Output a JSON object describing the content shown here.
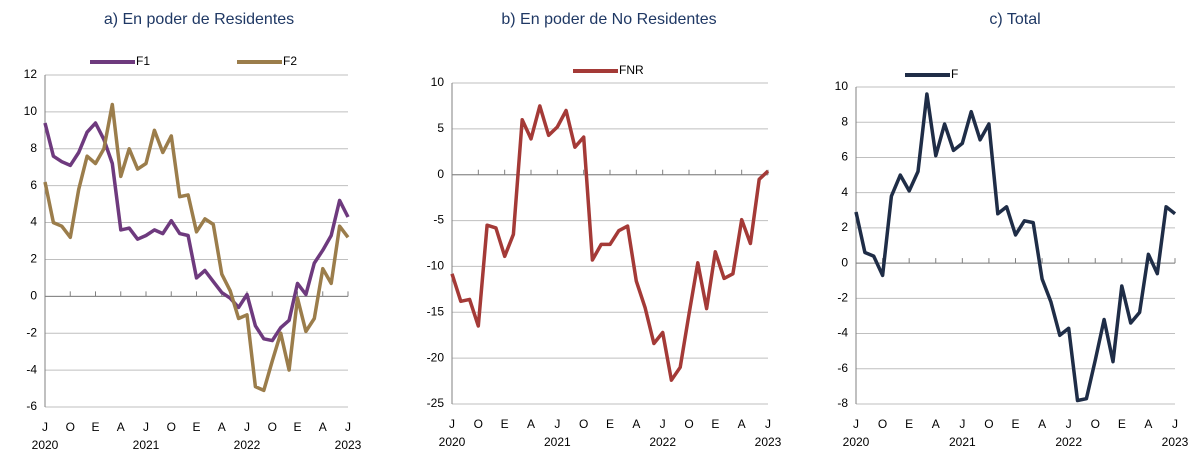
{
  "chart_data": [
    {
      "type": "line",
      "title": "a) En poder de Residentes",
      "categories": [
        "J",
        null,
        null,
        "O",
        null,
        null,
        "E",
        null,
        null,
        "A",
        null,
        null,
        "J",
        null,
        null,
        "O",
        null,
        null,
        "E",
        null,
        null,
        "A",
        null,
        null,
        "J",
        null,
        null,
        "O",
        null,
        null,
        "E",
        null,
        null,
        "A",
        null,
        null,
        "J"
      ],
      "category_groups": [
        "2020",
        "2021",
        "2022",
        "2023"
      ],
      "ylim": [
        -6,
        12
      ],
      "yticks": [
        -6,
        -4,
        -2,
        0,
        2,
        4,
        6,
        8,
        10,
        12
      ],
      "grid": true,
      "series": [
        {
          "name": "F1",
          "color": "#6e3a7e",
          "values": [
            9.4,
            7.6,
            7.3,
            7.1,
            7.8,
            8.9,
            9.4,
            8.5,
            7.2,
            3.6,
            3.7,
            3.1,
            3.3,
            3.6,
            3.4,
            4.1,
            3.4,
            3.3,
            1.0,
            1.4,
            0.8,
            0.2,
            -0.1,
            -0.6,
            0.1,
            -1.6,
            -2.3,
            -2.4,
            -1.7,
            -1.3,
            0.7,
            0.1,
            1.8,
            2.5,
            3.3,
            5.2,
            4.3
          ]
        },
        {
          "name": "F2",
          "color": "#9b7d4b",
          "values": [
            6.2,
            4.0,
            3.8,
            3.2,
            5.8,
            7.6,
            7.2,
            8.0,
            10.4,
            6.5,
            8.0,
            6.9,
            7.2,
            9.0,
            7.8,
            8.7,
            5.4,
            5.5,
            3.5,
            4.2,
            3.9,
            1.2,
            0.3,
            -1.2,
            -1.0,
            -4.9,
            -5.1,
            -3.5,
            -2.0,
            -4.0,
            -0.1,
            -1.9,
            -1.2,
            1.5,
            0.7,
            3.8,
            3.2
          ]
        }
      ]
    },
    {
      "type": "line",
      "title": "b) En poder de No Residentes",
      "categories": [
        "J",
        null,
        null,
        "O",
        null,
        null,
        "E",
        null,
        null,
        "A",
        null,
        null,
        "J",
        null,
        null,
        "O",
        null,
        null,
        "E",
        null,
        null,
        "A",
        null,
        null,
        "J",
        null,
        null,
        "O",
        null,
        null,
        "E",
        null,
        null,
        "A",
        null,
        null,
        "J"
      ],
      "category_groups": [
        "2020",
        "2021",
        "2022",
        "2023"
      ],
      "ylim": [
        -25,
        10
      ],
      "yticks": [
        -25,
        -20,
        -15,
        -10,
        -5,
        0,
        5,
        10
      ],
      "grid": true,
      "series": [
        {
          "name": "FNR",
          "color": "#a43a37",
          "values": [
            -10.8,
            -13.8,
            -13.6,
            -16.5,
            -5.5,
            -5.8,
            -8.9,
            -6.5,
            6.0,
            3.9,
            7.5,
            4.3,
            5.2,
            7.0,
            3.0,
            4.1,
            -9.3,
            -7.6,
            -7.6,
            -6.1,
            -5.6,
            -11.6,
            -14.5,
            -18.4,
            -17.2,
            -22.4,
            -21.0,
            -15.2,
            -9.6,
            -14.6,
            -8.4,
            -11.3,
            -10.8,
            -4.9,
            -7.5,
            -0.5,
            0.4
          ]
        }
      ]
    },
    {
      "type": "line",
      "title": "c) Total",
      "categories": [
        "J",
        null,
        null,
        "O",
        null,
        null,
        "E",
        null,
        null,
        "A",
        null,
        null,
        "J",
        null,
        null,
        "O",
        null,
        null,
        "E",
        null,
        null,
        "A",
        null,
        null,
        "J",
        null,
        null,
        "O",
        null,
        null,
        "E",
        null,
        null,
        "A",
        null,
        null,
        "J"
      ],
      "category_groups": [
        "2020",
        "2021",
        "2022",
        "2023"
      ],
      "ylim": [
        -8,
        10
      ],
      "yticks": [
        -8,
        -6,
        -4,
        -2,
        0,
        2,
        4,
        6,
        8,
        10
      ],
      "grid": true,
      "series": [
        {
          "name": "F",
          "color": "#1f2d47",
          "values": [
            2.9,
            0.6,
            0.4,
            -0.7,
            3.8,
            5.0,
            4.1,
            5.2,
            9.6,
            6.1,
            7.9,
            6.4,
            6.8,
            8.6,
            7.0,
            7.9,
            2.8,
            3.2,
            1.6,
            2.4,
            2.3,
            -0.9,
            -2.2,
            -4.1,
            -3.7,
            -7.8,
            -7.7,
            -5.5,
            -3.2,
            -5.6,
            -1.3,
            -3.4,
            -2.8,
            0.5,
            -0.6,
            3.2,
            2.8
          ]
        }
      ]
    }
  ]
}
